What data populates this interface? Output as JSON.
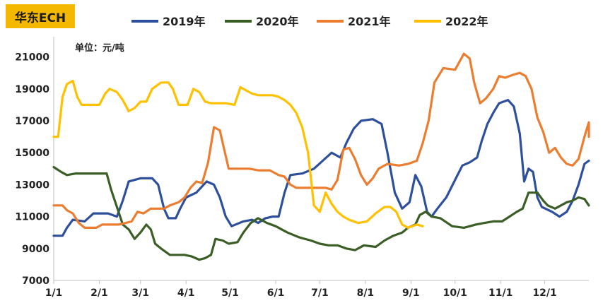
{
  "title": "华东ECH",
  "chart_data": {
    "type": "line",
    "unit_label": "单位：元/吨",
    "ylim": [
      7000,
      22000
    ],
    "y_ticks": [
      7000,
      9000,
      11000,
      13000,
      15000,
      17000,
      19000,
      21000
    ],
    "x_ticks": [
      "1/1",
      "2/1",
      "3/1",
      "4/1",
      "5/1",
      "6/1",
      "7/1",
      "8/1",
      "9/1",
      "10/1",
      "11/1",
      "12/1"
    ],
    "x_unit": "day_of_year",
    "grid": false,
    "legend_position": "top",
    "series": [
      {
        "name": "2019年",
        "color": "#2e4f9b",
        "points": [
          [
            1,
            9800
          ],
          [
            7,
            9800
          ],
          [
            10,
            10300
          ],
          [
            14,
            10800
          ],
          [
            22,
            10700
          ],
          [
            28,
            11200
          ],
          [
            38,
            11200
          ],
          [
            44,
            11000
          ],
          [
            48,
            12000
          ],
          [
            52,
            13200
          ],
          [
            60,
            13400
          ],
          [
            68,
            13400
          ],
          [
            72,
            13000
          ],
          [
            76,
            11500
          ],
          [
            79,
            10900
          ],
          [
            84,
            10900
          ],
          [
            87,
            11500
          ],
          [
            91,
            12200
          ],
          [
            98,
            12500
          ],
          [
            105,
            13200
          ],
          [
            110,
            13000
          ],
          [
            114,
            12200
          ],
          [
            118,
            11000
          ],
          [
            122,
            10400
          ],
          [
            130,
            10700
          ],
          [
            136,
            10800
          ],
          [
            140,
            10600
          ],
          [
            145,
            10900
          ],
          [
            150,
            11000
          ],
          [
            154,
            11000
          ],
          [
            158,
            12500
          ],
          [
            162,
            13600
          ],
          [
            170,
            13700
          ],
          [
            178,
            14000
          ],
          [
            184,
            14500
          ],
          [
            190,
            15000
          ],
          [
            196,
            14700
          ],
          [
            200,
            15600
          ],
          [
            205,
            16500
          ],
          [
            210,
            17000
          ],
          [
            218,
            17100
          ],
          [
            224,
            16800
          ],
          [
            228,
            15000
          ],
          [
            233,
            12500
          ],
          [
            238,
            11500
          ],
          [
            243,
            11900
          ],
          [
            247,
            13600
          ],
          [
            251,
            12900
          ],
          [
            255,
            11300
          ],
          [
            258,
            11000
          ],
          [
            262,
            11500
          ],
          [
            268,
            12200
          ],
          [
            274,
            13300
          ],
          [
            279,
            14200
          ],
          [
            284,
            14400
          ],
          [
            289,
            14700
          ],
          [
            292,
            15700
          ],
          [
            296,
            16800
          ],
          [
            300,
            17500
          ],
          [
            304,
            18100
          ],
          [
            310,
            18300
          ],
          [
            314,
            17900
          ],
          [
            318,
            16200
          ],
          [
            321,
            13200
          ],
          [
            324,
            14000
          ],
          [
            327,
            13800
          ],
          [
            330,
            12200
          ],
          [
            333,
            11600
          ],
          [
            340,
            11300
          ],
          [
            345,
            11000
          ],
          [
            350,
            11300
          ],
          [
            354,
            12000
          ],
          [
            358,
            13000
          ],
          [
            362,
            14300
          ],
          [
            365,
            14500
          ]
        ]
      },
      {
        "name": "2020年",
        "color": "#3a5e26",
        "points": [
          [
            1,
            14100
          ],
          [
            6,
            13800
          ],
          [
            10,
            13600
          ],
          [
            16,
            13700
          ],
          [
            30,
            13700
          ],
          [
            37,
            13700
          ],
          [
            40,
            12700
          ],
          [
            44,
            11600
          ],
          [
            48,
            10500
          ],
          [
            52,
            10200
          ],
          [
            56,
            9600
          ],
          [
            60,
            10000
          ],
          [
            64,
            10500
          ],
          [
            67,
            10200
          ],
          [
            70,
            9300
          ],
          [
            74,
            9000
          ],
          [
            80,
            8600
          ],
          [
            90,
            8600
          ],
          [
            95,
            8500
          ],
          [
            100,
            8300
          ],
          [
            104,
            8400
          ],
          [
            108,
            8600
          ],
          [
            111,
            9600
          ],
          [
            116,
            9500
          ],
          [
            120,
            9300
          ],
          [
            126,
            9400
          ],
          [
            130,
            10000
          ],
          [
            135,
            10600
          ],
          [
            140,
            10900
          ],
          [
            146,
            10600
          ],
          [
            152,
            10400
          ],
          [
            160,
            10000
          ],
          [
            168,
            9700
          ],
          [
            176,
            9500
          ],
          [
            182,
            9300
          ],
          [
            188,
            9200
          ],
          [
            194,
            9200
          ],
          [
            200,
            9000
          ],
          [
            206,
            8900
          ],
          [
            212,
            9200
          ],
          [
            220,
            9100
          ],
          [
            226,
            9500
          ],
          [
            232,
            9800
          ],
          [
            238,
            10000
          ],
          [
            242,
            10300
          ],
          [
            247,
            10500
          ],
          [
            250,
            11100
          ],
          [
            254,
            11300
          ],
          [
            258,
            11000
          ],
          [
            264,
            10900
          ],
          [
            272,
            10400
          ],
          [
            280,
            10300
          ],
          [
            288,
            10500
          ],
          [
            294,
            10600
          ],
          [
            300,
            10700
          ],
          [
            306,
            10700
          ],
          [
            311,
            11000
          ],
          [
            316,
            11300
          ],
          [
            320,
            11500
          ],
          [
            324,
            12500
          ],
          [
            330,
            12500
          ],
          [
            334,
            12000
          ],
          [
            337,
            11700
          ],
          [
            342,
            11500
          ],
          [
            346,
            11700
          ],
          [
            350,
            11900
          ],
          [
            354,
            12000
          ],
          [
            358,
            12200
          ],
          [
            362,
            12100
          ],
          [
            365,
            11700
          ]
        ]
      },
      {
        "name": "2021年",
        "color": "#ec7d30",
        "points": [
          [
            1,
            11700
          ],
          [
            7,
            11700
          ],
          [
            10,
            11400
          ],
          [
            14,
            11200
          ],
          [
            18,
            10600
          ],
          [
            22,
            10300
          ],
          [
            30,
            10300
          ],
          [
            34,
            10500
          ],
          [
            45,
            10500
          ],
          [
            50,
            10600
          ],
          [
            54,
            10700
          ],
          [
            58,
            11300
          ],
          [
            62,
            11200
          ],
          [
            67,
            11500
          ],
          [
            76,
            11500
          ],
          [
            80,
            11700
          ],
          [
            86,
            11900
          ],
          [
            90,
            12200
          ],
          [
            94,
            12800
          ],
          [
            98,
            13200
          ],
          [
            102,
            13100
          ],
          [
            106,
            14400
          ],
          [
            110,
            16600
          ],
          [
            114,
            16400
          ],
          [
            117,
            15200
          ],
          [
            120,
            14000
          ],
          [
            126,
            14000
          ],
          [
            134,
            14000
          ],
          [
            140,
            13900
          ],
          [
            148,
            13900
          ],
          [
            154,
            13600
          ],
          [
            158,
            13500
          ],
          [
            162,
            13000
          ],
          [
            166,
            12800
          ],
          [
            172,
            12800
          ],
          [
            180,
            12800
          ],
          [
            186,
            12800
          ],
          [
            190,
            12700
          ],
          [
            194,
            13300
          ],
          [
            198,
            15200
          ],
          [
            202,
            15300
          ],
          [
            206,
            14600
          ],
          [
            210,
            13600
          ],
          [
            214,
            13000
          ],
          [
            218,
            13400
          ],
          [
            222,
            14000
          ],
          [
            228,
            14300
          ],
          [
            236,
            14200
          ],
          [
            242,
            14300
          ],
          [
            248,
            14500
          ],
          [
            252,
            15600
          ],
          [
            256,
            17000
          ],
          [
            260,
            19400
          ],
          [
            266,
            20300
          ],
          [
            274,
            20200
          ],
          [
            280,
            21200
          ],
          [
            284,
            20900
          ],
          [
            287,
            19400
          ],
          [
            291,
            18100
          ],
          [
            295,
            18400
          ],
          [
            300,
            19000
          ],
          [
            304,
            19800
          ],
          [
            308,
            19700
          ],
          [
            314,
            19900
          ],
          [
            318,
            20000
          ],
          [
            322,
            19800
          ],
          [
            326,
            19000
          ],
          [
            330,
            17200
          ],
          [
            334,
            16300
          ],
          [
            338,
            15000
          ],
          [
            342,
            15300
          ],
          [
            346,
            14700
          ],
          [
            350,
            14300
          ],
          [
            354,
            14200
          ],
          [
            358,
            14600
          ],
          [
            362,
            16000
          ],
          [
            364,
            16600
          ],
          [
            365,
            16900
          ],
          [
            368,
            16500
          ],
          [
            372,
            16100
          ],
          [
            376,
            16000
          ]
        ]
      },
      {
        "name": "2022年",
        "color": "#ffc000",
        "points": [
          [
            1,
            16000
          ],
          [
            4,
            16000
          ],
          [
            7,
            18500
          ],
          [
            10,
            19300
          ],
          [
            14,
            19500
          ],
          [
            17,
            18500
          ],
          [
            20,
            18000
          ],
          [
            26,
            18000
          ],
          [
            32,
            18000
          ],
          [
            36,
            18700
          ],
          [
            39,
            19000
          ],
          [
            44,
            18800
          ],
          [
            48,
            18300
          ],
          [
            52,
            17600
          ],
          [
            56,
            17800
          ],
          [
            60,
            18200
          ],
          [
            64,
            18200
          ],
          [
            68,
            19000
          ],
          [
            74,
            19400
          ],
          [
            79,
            19400
          ],
          [
            82,
            19000
          ],
          [
            86,
            18000
          ],
          [
            92,
            18000
          ],
          [
            96,
            19000
          ],
          [
            100,
            18800
          ],
          [
            104,
            18200
          ],
          [
            108,
            18100
          ],
          [
            112,
            18100
          ],
          [
            118,
            18100
          ],
          [
            124,
            18000
          ],
          [
            128,
            19100
          ],
          [
            132,
            18900
          ],
          [
            136,
            18700
          ],
          [
            140,
            18600
          ],
          [
            146,
            18600
          ],
          [
            150,
            18600
          ],
          [
            154,
            18500
          ],
          [
            158,
            18300
          ],
          [
            162,
            18000
          ],
          [
            166,
            17500
          ],
          [
            170,
            16600
          ],
          [
            174,
            15000
          ],
          [
            178,
            11700
          ],
          [
            182,
            11300
          ],
          [
            186,
            12500
          ],
          [
            190,
            11800
          ],
          [
            194,
            11300
          ],
          [
            198,
            11000
          ],
          [
            202,
            10800
          ],
          [
            208,
            10600
          ],
          [
            214,
            10700
          ],
          [
            220,
            11200
          ],
          [
            226,
            11600
          ],
          [
            230,
            11600
          ],
          [
            234,
            11300
          ],
          [
            238,
            10500
          ],
          [
            242,
            10300
          ],
          [
            248,
            10500
          ],
          [
            252,
            10400
          ]
        ]
      }
    ]
  }
}
